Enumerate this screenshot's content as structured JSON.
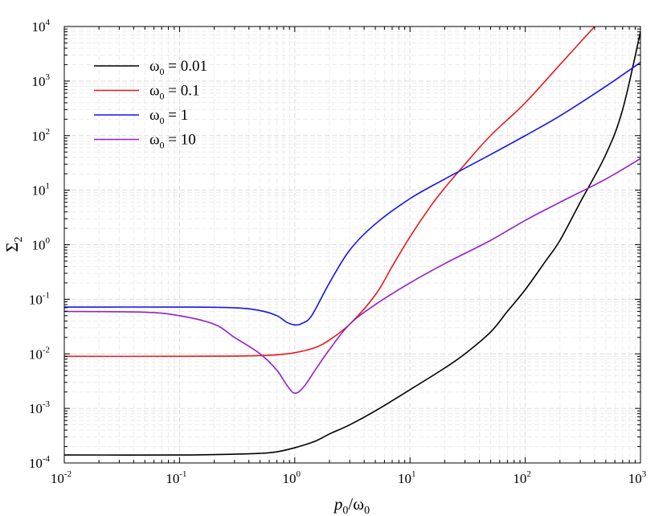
{
  "chart_data": {
    "type": "line",
    "title": "",
    "xlabel": {
      "main": "p",
      "sub": "0",
      "sep": "/ω",
      "sub2": "0"
    },
    "ylabel": {
      "main": "Σ",
      "sub": "2"
    },
    "xscale": "log",
    "yscale": "log",
    "xlim": [
      0.01,
      1000
    ],
    "ylim": [
      0.0001,
      10000
    ],
    "x_ticks": [
      {
        "base": "10",
        "exp": "-2",
        "value": 0.01
      },
      {
        "base": "10",
        "exp": "-1",
        "value": 0.1
      },
      {
        "base": "10",
        "exp": "0",
        "value": 1
      },
      {
        "base": "10",
        "exp": "1",
        "value": 10
      },
      {
        "base": "10",
        "exp": "2",
        "value": 100
      },
      {
        "base": "10",
        "exp": "3",
        "value": 1000
      }
    ],
    "y_ticks": [
      {
        "base": "10",
        "exp": "-4",
        "value": 0.0001
      },
      {
        "base": "10",
        "exp": "-3",
        "value": 0.001
      },
      {
        "base": "10",
        "exp": "-2",
        "value": 0.01
      },
      {
        "base": "10",
        "exp": "-1",
        "value": 0.1
      },
      {
        "base": "10",
        "exp": "0",
        "value": 1
      },
      {
        "base": "10",
        "exp": "1",
        "value": 10
      },
      {
        "base": "10",
        "exp": "2",
        "value": 100
      },
      {
        "base": "10",
        "exp": "3",
        "value": 1000
      },
      {
        "base": "10",
        "exp": "4",
        "value": 10000
      }
    ],
    "grid": true,
    "legend_position": "top-left",
    "series": [
      {
        "name": "ω0 = 0.01",
        "legend": {
          "sym": "ω",
          "sub": "0",
          "rest": " = 0.01"
        },
        "color": "#000000",
        "points": [
          [
            0.01,
            0.00014
          ],
          [
            0.1,
            0.00014
          ],
          [
            0.3,
            0.000145
          ],
          [
            0.5,
            0.00015
          ],
          [
            0.7,
            0.00016
          ],
          [
            1,
            0.00019
          ],
          [
            1.5,
            0.00025
          ],
          [
            2,
            0.00034
          ],
          [
            3,
            0.0005
          ],
          [
            5,
            0.0009
          ],
          [
            10,
            0.0022
          ],
          [
            20,
            0.0055
          ],
          [
            30,
            0.01
          ],
          [
            50,
            0.025
          ],
          [
            70,
            0.06
          ],
          [
            100,
            0.15
          ],
          [
            150,
            0.5
          ],
          [
            200,
            1.2
          ],
          [
            300,
            6
          ],
          [
            500,
            45
          ],
          [
            700,
            300
          ],
          [
            1000,
            8000
          ]
        ]
      },
      {
        "name": "ω0 = 0.1",
        "legend": {
          "sym": "ω",
          "sub": "0",
          "rest": " = 0.1"
        },
        "color": "#e8191c",
        "points": [
          [
            0.01,
            0.009
          ],
          [
            0.1,
            0.009
          ],
          [
            0.3,
            0.0091
          ],
          [
            0.5,
            0.0093
          ],
          [
            0.7,
            0.0096
          ],
          [
            1,
            0.0105
          ],
          [
            1.5,
            0.013
          ],
          [
            2,
            0.018
          ],
          [
            3,
            0.035
          ],
          [
            5,
            0.12
          ],
          [
            7,
            0.4
          ],
          [
            10,
            1.4
          ],
          [
            15,
            5
          ],
          [
            20,
            11
          ],
          [
            30,
            30
          ],
          [
            50,
            100
          ],
          [
            100,
            400
          ],
          [
            200,
            2000
          ],
          [
            400,
            10000
          ]
        ]
      },
      {
        "name": "ω0 = 1",
        "legend": {
          "sym": "ω",
          "sub": "0",
          "rest": " = 1"
        },
        "color": "#1414f0",
        "points": [
          [
            0.01,
            0.072
          ],
          [
            0.1,
            0.072
          ],
          [
            0.3,
            0.07
          ],
          [
            0.5,
            0.062
          ],
          [
            0.7,
            0.05
          ],
          [
            0.85,
            0.038
          ],
          [
            1,
            0.034
          ],
          [
            1.15,
            0.036
          ],
          [
            1.4,
            0.05
          ],
          [
            2,
            0.2
          ],
          [
            3,
            0.8
          ],
          [
            5,
            2.4
          ],
          [
            10,
            7
          ],
          [
            20,
            16
          ],
          [
            50,
            45
          ],
          [
            100,
            100
          ],
          [
            200,
            230
          ],
          [
            500,
            800
          ],
          [
            1000,
            2200
          ]
        ]
      },
      {
        "name": "ω0 = 10",
        "legend": {
          "sym": "ω",
          "sub": "0",
          "rest": " = 10"
        },
        "color": "#9420cc",
        "points": [
          [
            0.01,
            0.06
          ],
          [
            0.05,
            0.058
          ],
          [
            0.1,
            0.05
          ],
          [
            0.2,
            0.035
          ],
          [
            0.3,
            0.02
          ],
          [
            0.5,
            0.01
          ],
          [
            0.7,
            0.005
          ],
          [
            0.85,
            0.0027
          ],
          [
            1,
            0.0019
          ],
          [
            1.2,
            0.0025
          ],
          [
            1.5,
            0.005
          ],
          [
            2,
            0.012
          ],
          [
            3,
            0.035
          ],
          [
            5,
            0.08
          ],
          [
            10,
            0.2
          ],
          [
            20,
            0.45
          ],
          [
            50,
            1.2
          ],
          [
            100,
            2.8
          ],
          [
            200,
            6
          ],
          [
            500,
            16
          ],
          [
            1000,
            38
          ]
        ]
      }
    ]
  }
}
